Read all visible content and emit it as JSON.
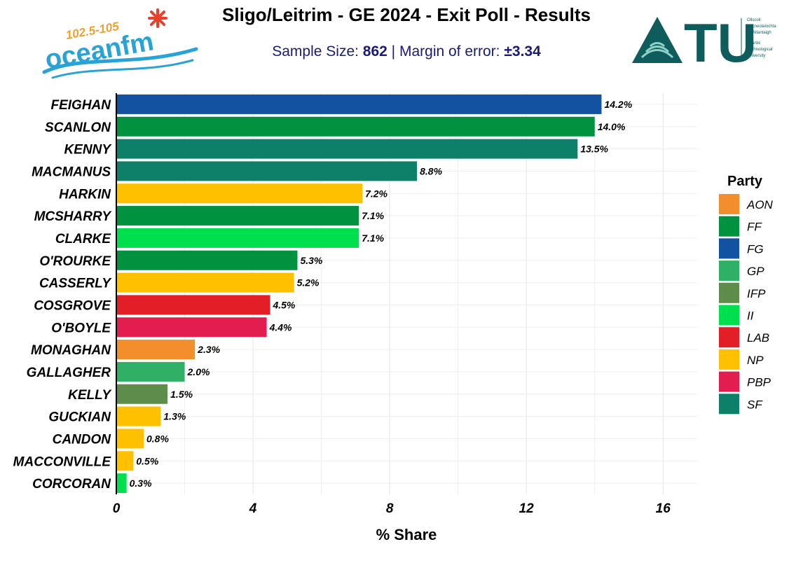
{
  "header": {
    "title": "Sligo/Leitrim - GE 2024 - Exit Poll - Results",
    "subtitle_prefix": "Sample Size: ",
    "sample_size": "862",
    "subtitle_mid": " | Margin of error: ",
    "margin_of_error": "±3.34"
  },
  "logos": {
    "left": {
      "text_top": "102.5-105",
      "text_main": "oceanfm",
      "colors": {
        "blue": "#29a3d6",
        "orange": "#f0a030",
        "red": "#e8402a"
      }
    },
    "right": {
      "text_main": "ATU",
      "lines": [
        "Ollscoil",
        "Teicneolaíochta",
        "an Atlantaigh",
        "Atlantic",
        "Technological",
        "University"
      ],
      "color": "#0e5c5c"
    }
  },
  "chart_data": {
    "type": "bar",
    "orientation": "horizontal",
    "categories": [
      "FEIGHAN",
      "SCANLON",
      "KENNY",
      "MACMANUS",
      "HARKIN",
      "MCSHARRY",
      "CLARKE",
      "O'ROURKE",
      "CASSERLY",
      "COSGROVE",
      "O'BOYLE",
      "MONAGHAN",
      "GALLAGHER",
      "KELLY",
      "GUCKIAN",
      "CANDON",
      "MACCONVILLE",
      "CORCORAN"
    ],
    "values": [
      14.2,
      14.0,
      13.5,
      8.8,
      7.2,
      7.1,
      7.1,
      5.3,
      5.2,
      4.5,
      4.4,
      2.3,
      2.0,
      1.5,
      1.3,
      0.8,
      0.5,
      0.3
    ],
    "value_labels": [
      "14.2%",
      "14.0%",
      "13.5%",
      "8.8%",
      "7.2%",
      "7.1%",
      "7.1%",
      "5.3%",
      "5.2%",
      "4.5%",
      "4.4%",
      "2.3%",
      "2.0%",
      "1.5%",
      "1.3%",
      "0.8%",
      "0.5%",
      "0.3%"
    ],
    "party": [
      "FG",
      "FF",
      "SF",
      "SF",
      "NP",
      "FF",
      "II",
      "FF",
      "NP",
      "LAB",
      "PBP",
      "AON",
      "GP",
      "IFP",
      "NP",
      "NP",
      "NP",
      "II"
    ],
    "xlabel": "% Share",
    "ylabel": "",
    "xlim": [
      0,
      17
    ],
    "xticks": [
      0,
      4,
      8,
      12,
      16
    ],
    "grid": true,
    "legend": {
      "title": "Party",
      "placement": "right",
      "entries": [
        {
          "name": "AON",
          "color": "#f28e2b"
        },
        {
          "name": "FF",
          "color": "#00923f"
        },
        {
          "name": "FG",
          "color": "#1352a0"
        },
        {
          "name": "GP",
          "color": "#2eb167"
        },
        {
          "name": "IFP",
          "color": "#5e8c4a"
        },
        {
          "name": "II",
          "color": "#00e04e"
        },
        {
          "name": "LAB",
          "color": "#e41e26"
        },
        {
          "name": "NP",
          "color": "#ffc000"
        },
        {
          "name": "PBP",
          "color": "#e21d4f"
        },
        {
          "name": "SF",
          "color": "#0e8069"
        }
      ]
    }
  }
}
